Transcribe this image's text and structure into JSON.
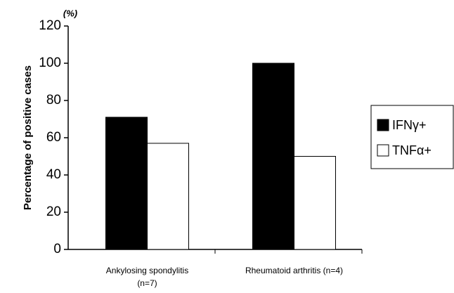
{
  "chart_data": {
    "type": "bar",
    "y_unit": "(%)",
    "y_axis_title": "Percentage of positive cases",
    "categories": [
      "Ankylosing spondylitis (n=7)",
      "Rheumatoid arthritis (n=4)"
    ],
    "series": [
      {
        "name": "IFNγ+",
        "color": "#000000",
        "values": [
          71,
          100
        ]
      },
      {
        "name": "TNFα+",
        "color": "#ffffff",
        "values": [
          57,
          50
        ]
      }
    ],
    "ylim": [
      0,
      120
    ],
    "yticks": [
      0,
      20,
      40,
      60,
      80,
      100,
      120
    ],
    "grid": false,
    "legend": "right"
  }
}
